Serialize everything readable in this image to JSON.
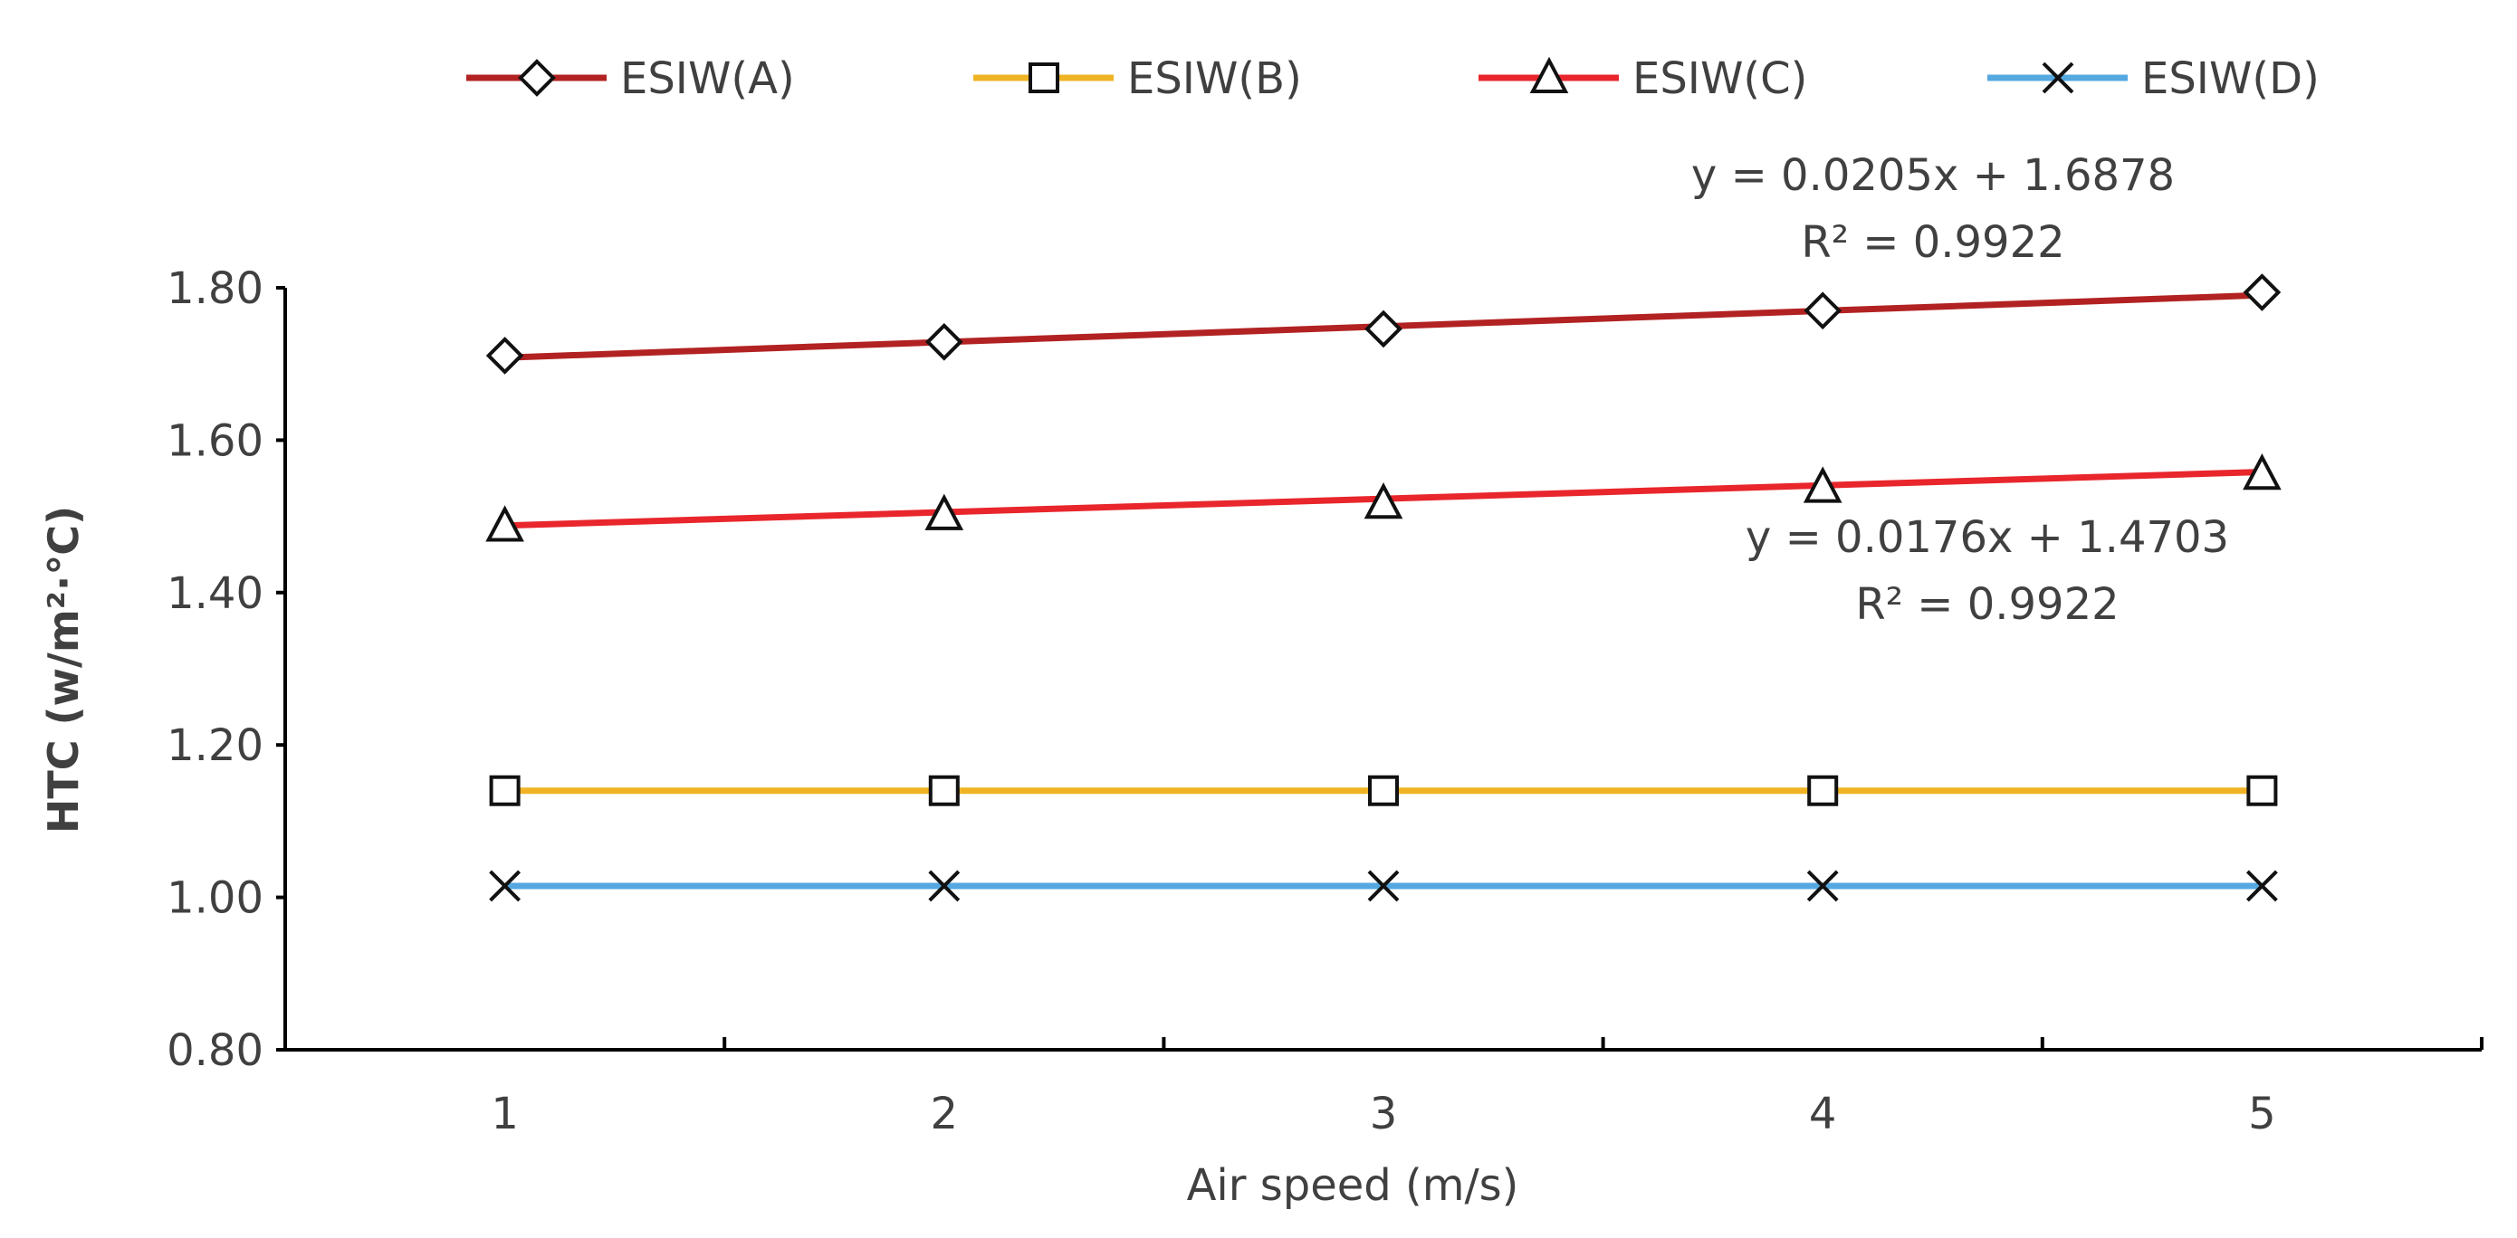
{
  "chart_data": {
    "type": "line",
    "title": "",
    "xlabel": "Air speed (m/s)",
    "ylabel": "HTC (w/m²·℃)",
    "x": [
      1,
      2,
      3,
      4,
      5
    ],
    "x_tick_labels": [
      "1",
      "2",
      "3",
      "4",
      "5"
    ],
    "xlim": [
      0.5,
      5.5
    ],
    "ylim": [
      0.8,
      1.8
    ],
    "y_ticks": [
      0.8,
      1.0,
      1.2,
      1.4,
      1.6,
      1.8
    ],
    "y_tick_labels": [
      "0.80",
      "1.00",
      "1.20",
      "1.40",
      "1.60",
      "1.80"
    ],
    "grid": false,
    "legend_position": "top",
    "series": [
      {
        "name": "ESIW(A)",
        "color": "#B22222",
        "marker": "diamond",
        "values": [
          1.711,
          1.729,
          1.746,
          1.77,
          1.794
        ],
        "trendline": {
          "slope": 0.0205,
          "intercept": 1.6878
        }
      },
      {
        "name": "ESIW(B)",
        "color": "#F0B323",
        "marker": "square",
        "values": [
          1.14,
          1.14,
          1.14,
          1.14,
          1.14
        ]
      },
      {
        "name": "ESIW(C)",
        "color": "#E8262C",
        "marker": "triangle",
        "values": [
          1.487,
          1.502,
          1.517,
          1.538,
          1.555
        ],
        "trendline": {
          "slope": 0.0176,
          "intercept": 1.4703
        }
      },
      {
        "name": "ESIW(D)",
        "color": "#55A8E0",
        "marker": "x",
        "values": [
          1.015,
          1.015,
          1.015,
          1.015,
          1.015
        ]
      }
    ],
    "annotations": [
      {
        "series": "ESIW(A)",
        "equation": "y = 0.0205x + 1.6878",
        "r2": "R² = 0.9922"
      },
      {
        "series": "ESIW(C)",
        "equation": "y = 0.0176x + 1.4703",
        "r2": "R² = 0.9922"
      }
    ]
  }
}
